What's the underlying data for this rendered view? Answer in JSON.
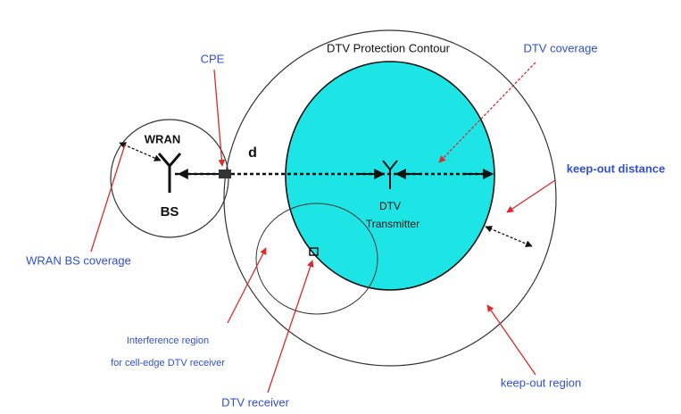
{
  "labels": {
    "protection_contour": "DTV Protection Contour",
    "cpe": "CPE",
    "dtv_coverage": "DTV coverage",
    "wran": "WRAN",
    "bs": "BS",
    "d": "d",
    "dtv": "DTV",
    "transmitter": "Transmitter",
    "keep_out_distance": "keep-out distance",
    "wran_bs_coverage": "WRAN BS coverage",
    "interference_region": "Interference region",
    "interference_region_2": "for cell-edge DTV receiver",
    "dtv_receiver": "DTV receiver",
    "keep_out_region": "keep-out region"
  }
}
